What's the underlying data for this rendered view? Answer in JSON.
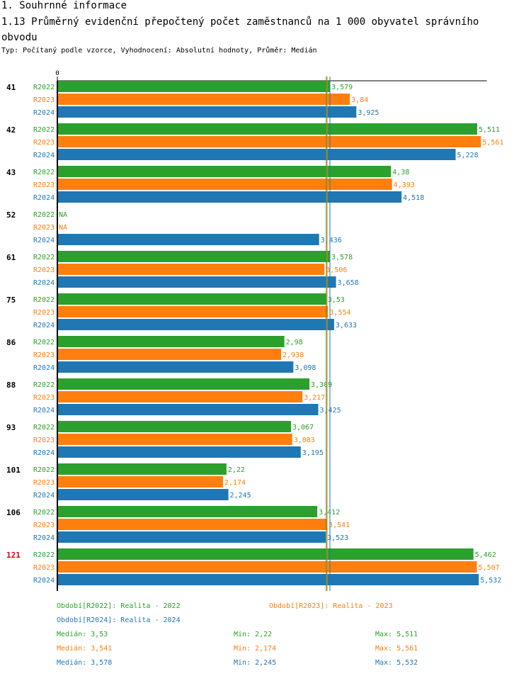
{
  "header": {
    "section_title": "1. Souhrnné informace",
    "chart_title": "1.13 Průměrný evidenční přepočtený počet zaměstnanců na 1 000 obyvatel správního obvodu",
    "subtitle": "Typ: Počítaný podle vzorce, Vyhodnocení: Absolutní hodnoty, Průměr: Medián"
  },
  "colors": {
    "R2022": "#2ca02c",
    "R2023": "#ff7f0e",
    "R2024": "#1f77b4",
    "highlight": "#dd0000"
  },
  "chart_data": {
    "type": "bar",
    "orientation": "horizontal",
    "axis_zero_label": "0",
    "xlim": [
      0,
      5.6
    ],
    "categories": [
      "41",
      "42",
      "43",
      "52",
      "61",
      "75",
      "86",
      "88",
      "93",
      "101",
      "106",
      "121"
    ],
    "highlighted_category": "121",
    "series": [
      {
        "name": "R2022",
        "labels": [
          "3,579",
          "5,511",
          "4,38",
          "NA",
          "3,578",
          "3,53",
          "2,98",
          "3,309",
          "3,067",
          "2,22",
          "3,412",
          "5,462"
        ],
        "values": [
          3.579,
          5.511,
          4.38,
          null,
          3.578,
          3.53,
          2.98,
          3.309,
          3.067,
          2.22,
          3.412,
          5.462
        ]
      },
      {
        "name": "R2023",
        "labels": [
          "3,84",
          "5,561",
          "4,393",
          "NA",
          "3,506",
          "3,554",
          "2,938",
          "3,217",
          "3,083",
          "2,174",
          "3,541",
          "5,507"
        ],
        "values": [
          3.84,
          5.561,
          4.393,
          null,
          3.506,
          3.554,
          2.938,
          3.217,
          3.083,
          2.174,
          3.541,
          5.507
        ]
      },
      {
        "name": "R2024",
        "labels": [
          "3,925",
          "5,228",
          "4,518",
          "3,436",
          "3,658",
          "3,633",
          "3,098",
          "3,425",
          "3,195",
          "2,245",
          "3,523",
          "5,532"
        ],
        "values": [
          3.925,
          5.228,
          4.518,
          3.436,
          3.658,
          3.633,
          3.098,
          3.425,
          3.195,
          2.245,
          3.523,
          5.532
        ]
      }
    ],
    "median_lines": [
      3.53,
      3.541,
      3.578
    ]
  },
  "legend": {
    "periods": [
      {
        "text": "Období[R2022]: Realita - 2022"
      },
      {
        "text": "Období[R2023]: Realita - 2023"
      },
      {
        "text": "Období[R2024]: Realita - 2024"
      }
    ],
    "stats": [
      {
        "median": "Medián: 3,53",
        "min": "Min: 2,22",
        "max": "Max: 5,511"
      },
      {
        "median": "Medián: 3,541",
        "min": "Min: 2,174",
        "max": "Max: 5,561"
      },
      {
        "median": "Medián: 3,578",
        "min": "Min: 2,245",
        "max": "Max: 5,532"
      }
    ]
  }
}
